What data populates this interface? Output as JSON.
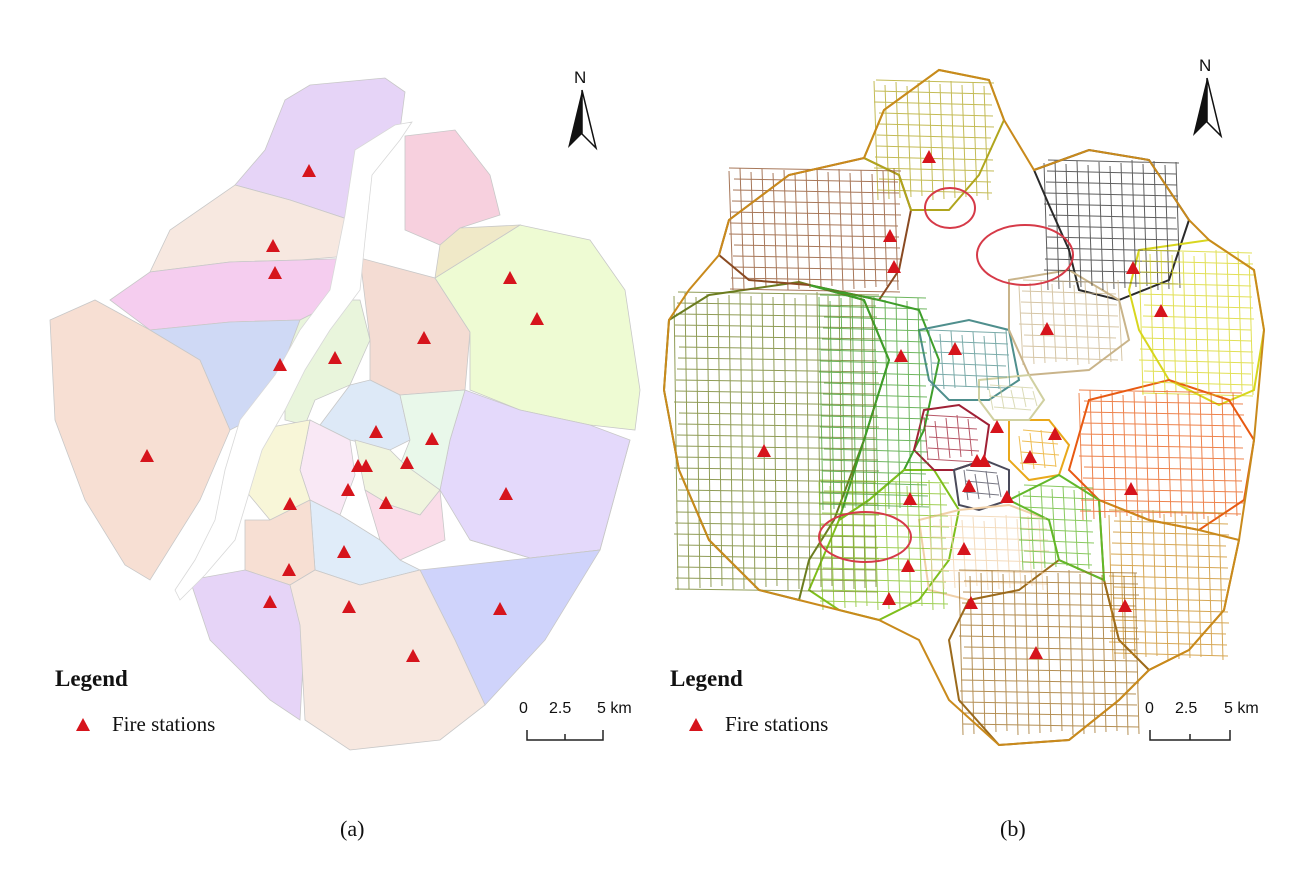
{
  "panels": [
    {
      "id": "a",
      "caption": "(a)",
      "north_label": "N",
      "legend_title": "Legend",
      "legend_item": "Fire stations",
      "scale_labels": [
        "0",
        "2.5",
        "5 km"
      ]
    },
    {
      "id": "b",
      "caption": "(b)",
      "north_label": "N",
      "legend_title": "Legend",
      "legend_item": "Fire stations",
      "scale_labels": [
        "0",
        "2.5",
        "5 km"
      ]
    }
  ],
  "colors": {
    "marker": "#d6141c",
    "river": "#ffffff",
    "highlight": "#d63a48"
  },
  "map_a_zone_colors": [
    "#f7dfd3",
    "#e6d4f7",
    "#f7e8e0",
    "#f7d0de",
    "#f5cdef",
    "#cfd9f5",
    "#e9f5dc",
    "#f4dcd3",
    "#eefbd3",
    "#f0e9c8",
    "#dde9f7",
    "#e4d9fb",
    "#e9f8ea",
    "#cfd3fb",
    "#f9e8f5",
    "#f0f5de",
    "#f8f6d8",
    "#fadde9",
    "#e0ecf9"
  ],
  "map_b_zone_colors": [
    "#6b7c1f",
    "#8a4a22",
    "#b0a51d",
    "#2a2a2a",
    "#d8d61e",
    "#3e9e2a",
    "#4f8f8d",
    "#c9b48a",
    "#7fbf1c",
    "#a02035",
    "#4a4a5a",
    "#e9a81a",
    "#d0d0a0",
    "#f0d0a8",
    "#e85a12",
    "#c98a1c",
    "#9b6a1c",
    "#62b82a"
  ]
}
